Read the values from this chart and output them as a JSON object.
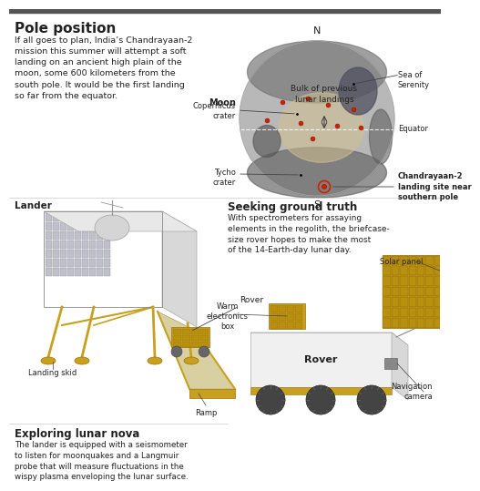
{
  "title": "Pole position",
  "title_fontsize": 11,
  "body_text": "If all goes to plan, India’s Chandrayaan-2\nmission this summer will attempt a soft\nlanding on an ancient high plain of the\nmoon, some 600 kilometers from the\nsouth pole. It would be the first landing\nso far from the equator.",
  "body_fontsize": 6.8,
  "moon_label": "Moon",
  "north_label": "N",
  "south_label": "S",
  "sea_serenity_label": "Sea of\nSerenity",
  "equator_label": "Equator",
  "copernicus_label": "Copernicus\ncrater",
  "tycho_label": "Tycho\ncrater",
  "bulk_label": "Bulk of previous\nlunar landings",
  "chandrayaan_label": "Chandrayaan-2\nlanding site near\nsouthern pole",
  "seeking_title": "Seeking ground truth",
  "seeking_text": "With spectrometers for assaying\nelements in the regolith, the briefcase-\nsize rover hopes to make the most\nof the 14-Earth-day lunar day.",
  "lander_label": "Lander",
  "rover_label_top": "Rover",
  "landing_skid_label": "Landing skid",
  "ramp_label": "Ramp",
  "solar_panel_label": "Solar panel",
  "warm_electronics_label": "Warm\nelectronics\nbox",
  "rover_label_bottom": "Rover",
  "nav_camera_label": "Navigation\ncamera",
  "exploring_title": "Exploring lunar nova",
  "exploring_text": "The lander is equipped with a seismometer\nto listen for moonquakes and a Langmuir\nprobe that will measure fluctuations in the\nwispy plasma enveloping the lunar surface.",
  "bg_color": "#ffffff",
  "text_color": "#222222",
  "gold_color": "#c8a020",
  "moon_base": "#b0b0b0",
  "moon_highland": "#d4c8a0",
  "dark_mare": "#505050"
}
